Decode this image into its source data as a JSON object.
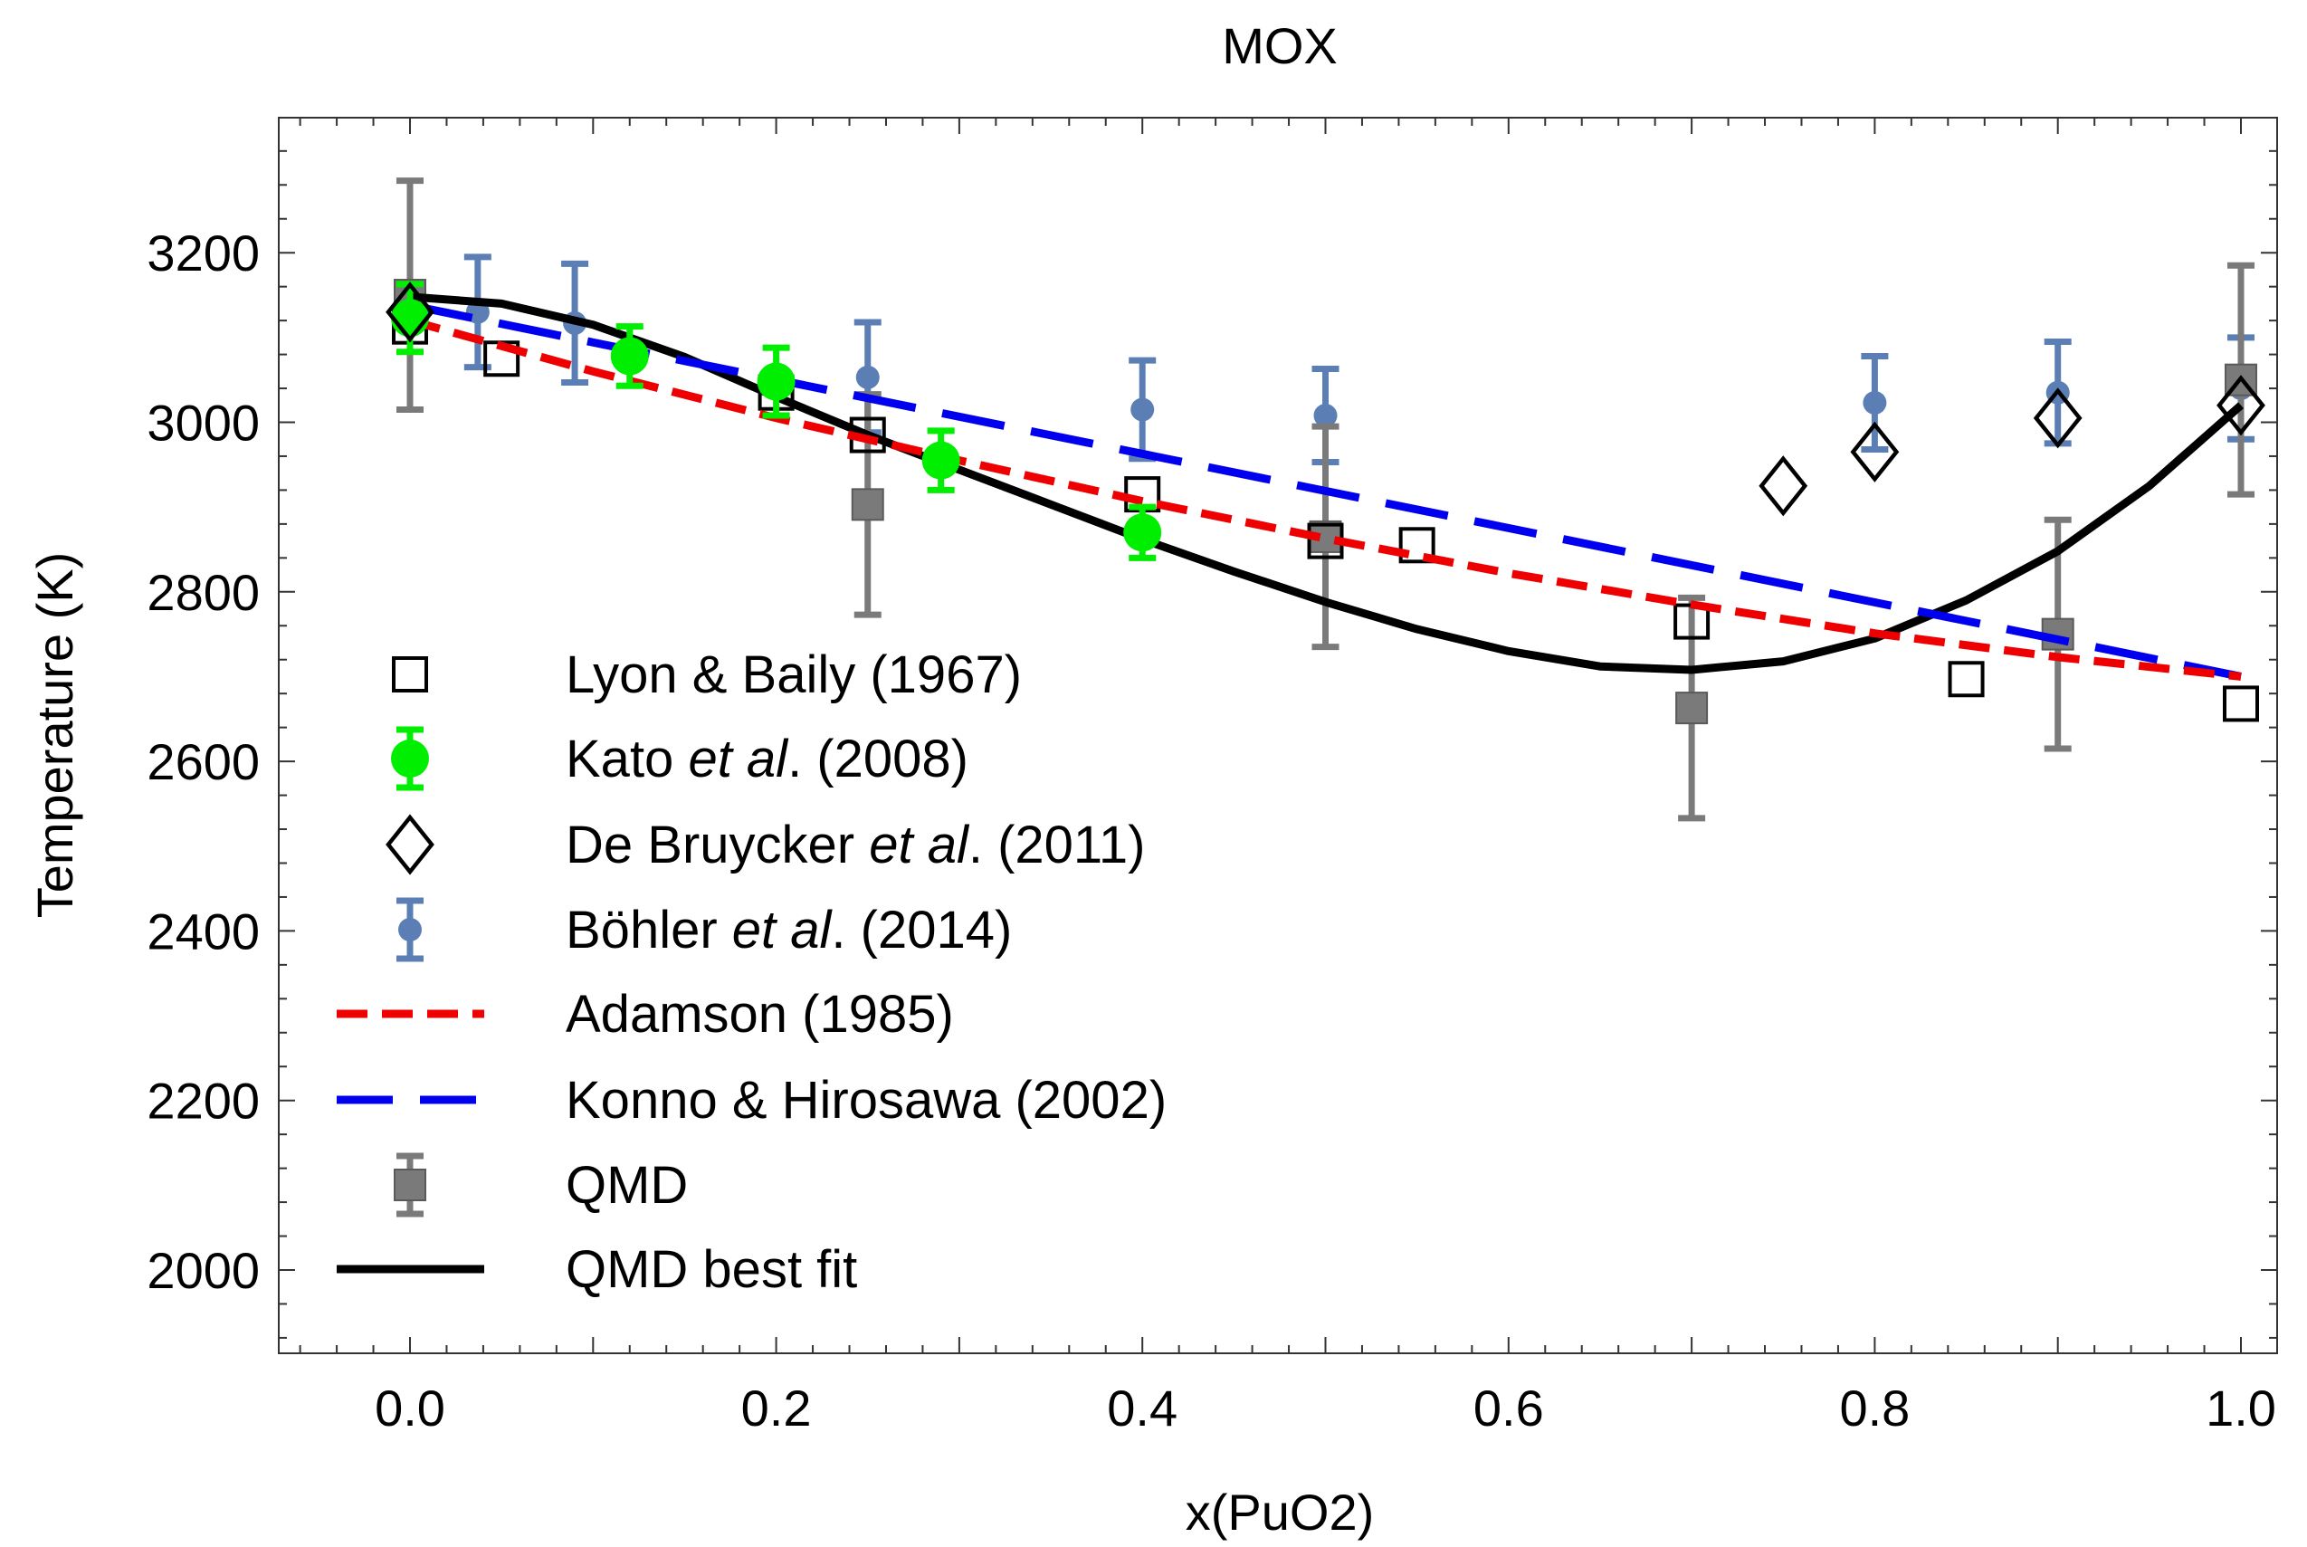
{
  "chart_data": {
    "type": "scatter",
    "title": "MOX",
    "xlabel": "x(PuO2)",
    "ylabel": "Temperature (K)",
    "xlim": [
      -0.07,
      1.03
    ],
    "ylim": [
      1900,
      3360
    ],
    "xticks": [
      0.0,
      0.2,
      0.4,
      0.6,
      0.8,
      1.0
    ],
    "xtick_labels": [
      "0.0",
      "0.2",
      "0.4",
      "0.6",
      "0.8",
      "1.0"
    ],
    "yticks": [
      2000,
      2200,
      2400,
      2600,
      2800,
      3000,
      3200
    ],
    "ytick_labels": [
      "2000",
      "2200",
      "2400",
      "2600",
      "2800",
      "3000",
      "3200"
    ],
    "grid": false,
    "legend_position": "left",
    "series": [
      {
        "key": "lyon",
        "legend": [
          "Lyon & Baily (1967)"
        ],
        "kind": "marker",
        "marker": "open-square",
        "color": "#000000",
        "x": [
          0.0,
          0.05,
          0.2,
          0.25,
          0.4,
          0.5,
          0.55,
          0.7,
          0.85,
          1.0
        ],
        "y": [
          3113,
          3075,
          3035,
          2985,
          2915,
          2860,
          2855,
          2765,
          2697,
          2668
        ]
      },
      {
        "key": "kato",
        "legend": [
          "Kato ",
          "et al",
          ". (2008)"
        ],
        "kind": "marker",
        "marker": "filled-circle",
        "color": "#00ee00",
        "x": [
          0.0,
          0.12,
          0.2,
          0.29,
          0.4
        ],
        "y": [
          3123,
          3078,
          3048,
          2955,
          2870
        ],
        "err": [
          40,
          35,
          40,
          35,
          30
        ]
      },
      {
        "key": "debruycker",
        "legend": [
          "De Bruycker ",
          "et al",
          ". (2011)"
        ],
        "kind": "marker",
        "marker": "open-diamond",
        "color": "#000000",
        "x": [
          0.0,
          0.75,
          0.8,
          0.9,
          1.0
        ],
        "y": [
          3130,
          2925,
          2965,
          3005,
          3020
        ]
      },
      {
        "key": "bohler",
        "legend": [
          "Böhler ",
          "et al",
          ". (2014)"
        ],
        "kind": "marker",
        "marker": "small-circle",
        "color": "#5b7fb5",
        "x": [
          0.037,
          0.09,
          0.25,
          0.4,
          0.5,
          0.8,
          0.9,
          1.0
        ],
        "y": [
          3130,
          3117,
          3053,
          3015,
          3008,
          3023,
          3035,
          3040
        ],
        "err": [
          65,
          70,
          65,
          58,
          55,
          55,
          60,
          60
        ]
      },
      {
        "key": "adamson",
        "legend": [
          "Adamson (1985)"
        ],
        "kind": "line",
        "style": "short-dash",
        "color": "#ee0000",
        "x": [
          0.0,
          0.1,
          0.2,
          0.3,
          0.4,
          0.5,
          0.6,
          0.7,
          0.8,
          0.9,
          1.0
        ],
        "y": [
          3120,
          3060,
          3005,
          2955,
          2907,
          2863,
          2822,
          2785,
          2751,
          2723,
          2700
        ]
      },
      {
        "key": "konno",
        "legend": [
          "Konno & Hirosawa (2002)"
        ],
        "kind": "line",
        "style": "long-dash",
        "color": "#0000ee",
        "x": [
          0.0,
          1.0
        ],
        "y": [
          3138,
          2700
        ]
      },
      {
        "key": "qmd",
        "legend": [
          "QMD"
        ],
        "kind": "marker",
        "marker": "filled-square",
        "color": "#7a7a7a",
        "x": [
          0.0,
          0.25,
          0.5,
          0.7,
          0.9,
          1.0
        ],
        "y": [
          3150,
          2903,
          2865,
          2663,
          2750,
          3050
        ],
        "err": [
          135,
          130,
          130,
          130,
          135,
          135
        ]
      },
      {
        "key": "qmdfit",
        "legend": [
          "QMD best fit"
        ],
        "kind": "line",
        "style": "solid",
        "color": "#000000",
        "x": [
          0.0,
          0.05,
          0.1,
          0.15,
          0.2,
          0.25,
          0.3,
          0.35,
          0.4,
          0.45,
          0.5,
          0.55,
          0.6,
          0.65,
          0.7,
          0.75,
          0.8,
          0.85,
          0.9,
          0.95,
          1.0
        ],
        "y": [
          3148,
          3140,
          3115,
          3077,
          3030,
          2985,
          2944,
          2903,
          2862,
          2824,
          2788,
          2756,
          2730,
          2712,
          2708,
          2718,
          2745,
          2790,
          2848,
          2925,
          3020
        ]
      }
    ]
  }
}
